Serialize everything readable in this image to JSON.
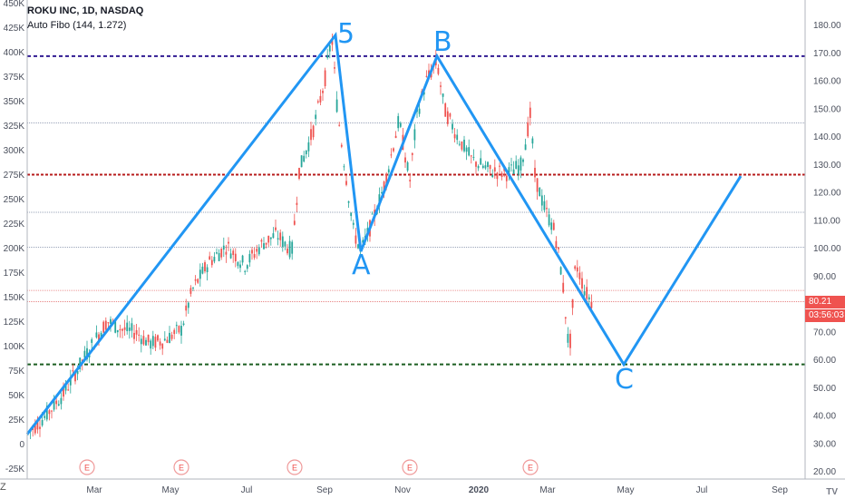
{
  "header": {
    "title": "ROKU INC, 1D, NASDAQ",
    "indicator": "Auto Fibo (144, 1.272)"
  },
  "last_price": "80.21",
  "countdown": "03:56:03",
  "z_label": "Z",
  "logo": "TV",
  "colors": {
    "up": "#26a69a",
    "down": "#ef5350",
    "wave": "#2196f3",
    "fib_purple": "#311b92",
    "fib_red": "#b71c1c",
    "fib_green": "#1b5e20",
    "earnings": "#ef9a9a"
  },
  "chart_data": {
    "type": "candlestick",
    "left_axis": {
      "ticks": [
        -25,
        0,
        25,
        50,
        75,
        100,
        125,
        150,
        175,
        200,
        225,
        250,
        275,
        300,
        325,
        350,
        375,
        400,
        425,
        450
      ],
      "labels": [
        "-25K",
        "0",
        "25K",
        "50K",
        "75K",
        "100K",
        "125K",
        "150K",
        "175K",
        "200K",
        "225K",
        "250K",
        "275K",
        "300K",
        "325K",
        "350K",
        "375K",
        "400K",
        "425K",
        "450K"
      ]
    },
    "right_axis": {
      "ticks": [
        20,
        30,
        40,
        50,
        60,
        70,
        80,
        90,
        100,
        110,
        120,
        130,
        140,
        150,
        160,
        170,
        180
      ],
      "labels": [
        "20.00",
        "30.00",
        "40.00",
        "50.00",
        "60.00",
        "70.00",
        "80.00",
        "90.00",
        "100.00",
        "110.00",
        "120.00",
        "130.00",
        "140.00",
        "150.00",
        "160.00",
        "170.00",
        "180.00"
      ]
    },
    "x_ticks": [
      "Mar",
      "May",
      "Jul",
      "Sep",
      "Nov",
      "2020",
      "Mar",
      "May",
      "Jul",
      "Sep"
    ],
    "earnings_marker": "E",
    "fib_levels": [
      {
        "price": 169,
        "style": "purple"
      },
      {
        "price": 145,
        "style": "thin"
      },
      {
        "price": 126.5,
        "style": "red"
      },
      {
        "price": 113,
        "style": "thin"
      },
      {
        "price": 100.5,
        "style": "thin"
      },
      {
        "price": 85,
        "style": "thinred"
      },
      {
        "price": 81,
        "style": "thinred"
      },
      {
        "price": 58.5,
        "style": "green"
      }
    ],
    "wave_labels": [
      "5",
      "A",
      "B",
      "C"
    ],
    "wave_prices": [
      33.5,
      176.5,
      99,
      169,
      58.5,
      126
    ]
  }
}
